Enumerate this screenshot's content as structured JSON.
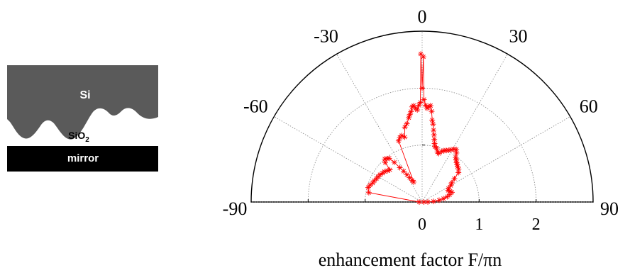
{
  "inset": {
    "layer_top": "Si",
    "layer_oxide_main": "SiO",
    "layer_oxide_sub": "2",
    "layer_bottom": "mirror",
    "colors": {
      "si": "#5a5a5a",
      "mirror": "#000000"
    }
  },
  "chart_data": {
    "type": "polar-scatter",
    "title": "",
    "xlabel": "enhancement factor F/πn",
    "angle_ticks": [
      "-90",
      "-60",
      "-30",
      "0",
      "30",
      "60",
      "90"
    ],
    "radial_ticks": [
      "0",
      "1",
      "2"
    ],
    "angle_range_deg": [
      -90,
      90
    ],
    "radial_range": [
      0,
      3
    ],
    "grid": true,
    "marker": "asterisk",
    "series_color": "#ff0000",
    "series": [
      {
        "points": [
          [
            -90,
            0.05
          ],
          [
            -80,
            0.95
          ],
          [
            -75,
            0.98
          ],
          [
            -72,
            0.96
          ],
          [
            -69,
            0.93
          ],
          [
            -66,
            0.92
          ],
          [
            -63,
            0.9
          ],
          [
            -60,
            0.89
          ],
          [
            -57,
            0.88
          ],
          [
            -54,
            0.86
          ],
          [
            -51,
            0.85
          ],
          [
            -48,
            0.82
          ],
          [
            -45,
            0.8
          ],
          [
            -43,
            0.95
          ],
          [
            -41,
            1.0
          ],
          [
            -39,
            0.98
          ],
          [
            -37,
            0.96
          ],
          [
            -35,
            0.85
          ],
          [
            -33,
            0.72
          ],
          [
            -31,
            0.63
          ],
          [
            -29,
            0.55
          ],
          [
            -27,
            0.48
          ],
          [
            -25,
            0.42
          ],
          [
            -23,
            0.38
          ],
          [
            -21,
            1.15
          ],
          [
            -19,
            1.2
          ],
          [
            -17,
            1.22
          ],
          [
            -15,
            1.18
          ],
          [
            -13,
            1.35
          ],
          [
            -11,
            1.4
          ],
          [
            -9,
            1.5
          ],
          [
            -8,
            1.55
          ],
          [
            -7,
            1.6
          ],
          [
            -6,
            1.68
          ],
          [
            -5,
            1.7
          ],
          [
            -4,
            1.65
          ],
          [
            -3,
            1.62
          ],
          [
            -2,
            1.7
          ],
          [
            -1,
            1.75
          ],
          [
            -0.5,
            2.6
          ],
          [
            0,
            2.0
          ],
          [
            0.5,
            2.55
          ],
          [
            1,
            1.8
          ],
          [
            2,
            1.7
          ],
          [
            3,
            1.65
          ],
          [
            4,
            1.68
          ],
          [
            5,
            1.7
          ],
          [
            6,
            1.6
          ],
          [
            7,
            1.45
          ],
          [
            8,
            1.38
          ],
          [
            9,
            1.28
          ],
          [
            10,
            1.2
          ],
          [
            11,
            1.12
          ],
          [
            12,
            1.05
          ],
          [
            13,
            1.0
          ],
          [
            15,
            0.98
          ],
          [
            17,
            0.92
          ],
          [
            19,
            0.9
          ],
          [
            21,
            0.95
          ],
          [
            23,
            0.98
          ],
          [
            25,
            1.0
          ],
          [
            27,
            1.02
          ],
          [
            29,
            1.05
          ],
          [
            31,
            1.08
          ],
          [
            33,
            1.1
          ],
          [
            35,
            1.05
          ],
          [
            37,
            0.98
          ],
          [
            39,
            0.95
          ],
          [
            41,
            0.92
          ],
          [
            43,
            0.9
          ],
          [
            45,
            0.88
          ],
          [
            48,
            0.86
          ],
          [
            51,
            0.82
          ],
          [
            54,
            0.7
          ],
          [
            57,
            0.62
          ],
          [
            60,
            0.58
          ],
          [
            63,
            0.52
          ],
          [
            66,
            0.5
          ],
          [
            69,
            0.52
          ],
          [
            72,
            0.55
          ],
          [
            75,
            0.5
          ],
          [
            78,
            0.45
          ],
          [
            81,
            0.38
          ],
          [
            84,
            0.3
          ],
          [
            87,
            0.2
          ],
          [
            89,
            0.1
          ],
          [
            90,
            0.03
          ]
        ]
      }
    ]
  }
}
